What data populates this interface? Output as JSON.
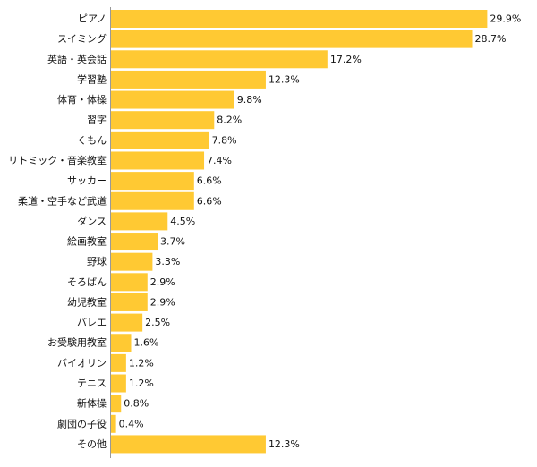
{
  "chart_data": {
    "type": "bar",
    "orientation": "horizontal",
    "categories": [
      "ピアノ",
      "スイミング",
      "英語・英会話",
      "学習塾",
      "体育・体操",
      "習字",
      "くもん",
      "リトミック・音楽教室",
      "サッカー",
      "柔道・空手など武道",
      "ダンス",
      "絵画教室",
      "野球",
      "そろばん",
      "幼児教室",
      "バレエ",
      "お受験用教室",
      "バイオリン",
      "テニス",
      "新体操",
      "劇団の子役",
      "その他"
    ],
    "values": [
      29.9,
      28.7,
      17.2,
      12.3,
      9.8,
      8.2,
      7.8,
      7.4,
      6.6,
      6.6,
      4.5,
      3.7,
      3.3,
      2.9,
      2.9,
      2.5,
      1.6,
      1.2,
      1.2,
      0.8,
      0.4,
      12.3
    ],
    "value_labels": [
      "29.9%",
      "28.7%",
      "17.2%",
      "12.3%",
      "9.8%",
      "8.2%",
      "7.8%",
      "7.4%",
      "6.6%",
      "6.6%",
      "4.5%",
      "3.7%",
      "3.3%",
      "2.9%",
      "2.9%",
      "2.5%",
      "1.6%",
      "1.2%",
      "1.2%",
      "0.8%",
      "0.4%",
      "12.3%"
    ],
    "xlim": [
      0,
      30
    ],
    "grid": false,
    "bar_color": "#FFC933",
    "axis_color": "#999999"
  }
}
